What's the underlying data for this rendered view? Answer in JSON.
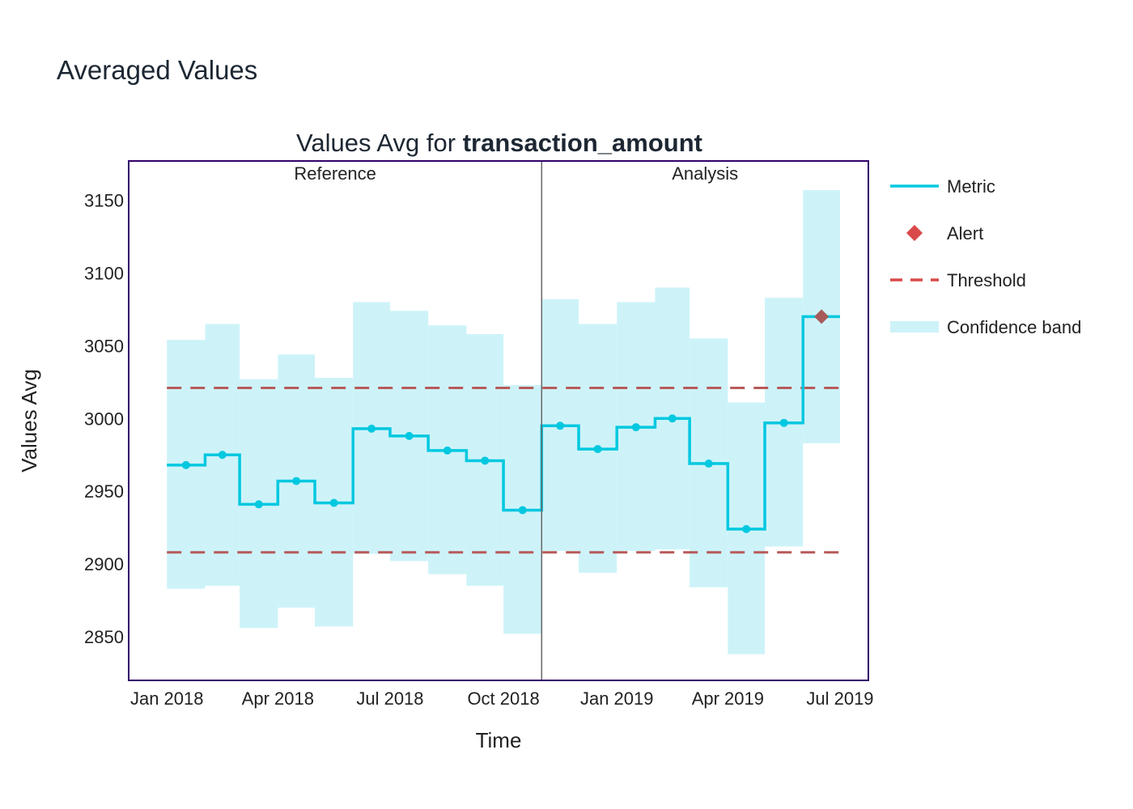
{
  "page": {
    "title": "Averaged Values"
  },
  "chart_data": {
    "type": "line",
    "title_prefix": "Values Avg for ",
    "title_bold": "transaction_amount",
    "xlabel": "Time",
    "ylabel": "Values Avg",
    "x_tick_labels": [
      "Jan 2018",
      "Apr 2018",
      "Jul 2018",
      "Oct 2018",
      "Jan 2019",
      "Apr 2019",
      "Jul 2019"
    ],
    "x_tick_dates": [
      "2018-01-01",
      "2018-04-01",
      "2018-07-01",
      "2018-10-01",
      "2019-01-01",
      "2019-04-01",
      "2019-07-01"
    ],
    "y_ticks": [
      2850,
      2900,
      2950,
      3000,
      3050,
      3100,
      3150
    ],
    "xlim": [
      "2017-12-01",
      "2019-07-24"
    ],
    "ylim": [
      2820,
      3177
    ],
    "grid": false,
    "legend_placement": "right",
    "periods": {
      "reference": "Reference",
      "analysis": "Analysis",
      "boundary": "2018-11-01"
    },
    "thresholds": {
      "upper": 3021,
      "lower": 2908
    },
    "colors": {
      "metric": "#00c8e0",
      "alert": "#d94949",
      "threshold": "#b85a5a",
      "band": "#cdf3f9",
      "frame": "#33006b",
      "divider": "#666666"
    },
    "legend": [
      {
        "label": "Metric",
        "kind": "line",
        "color": "#00c8e0"
      },
      {
        "label": "Alert",
        "kind": "diamond",
        "color": "#d94949"
      },
      {
        "label": "Threshold",
        "kind": "dash",
        "color": "#d94949"
      },
      {
        "label": "Confidence band",
        "kind": "band",
        "color": "#cdf3f9"
      }
    ],
    "series": [
      {
        "name": "Metric",
        "chunks": [
          {
            "start": "2018-01-01",
            "end": "2018-02-01",
            "value": 2968,
            "upper": 3054,
            "lower": 2883
          },
          {
            "start": "2018-02-01",
            "end": "2018-03-01",
            "value": 2975,
            "upper": 3065,
            "lower": 2885
          },
          {
            "start": "2018-03-01",
            "end": "2018-04-01",
            "value": 2941,
            "upper": 3027,
            "lower": 2856
          },
          {
            "start": "2018-04-01",
            "end": "2018-05-01",
            "value": 2957,
            "upper": 3044,
            "lower": 2870
          },
          {
            "start": "2018-05-01",
            "end": "2018-06-01",
            "value": 2942,
            "upper": 3028,
            "lower": 2857
          },
          {
            "start": "2018-06-01",
            "end": "2018-07-01",
            "value": 2993,
            "upper": 3080,
            "lower": 2907
          },
          {
            "start": "2018-07-01",
            "end": "2018-08-01",
            "value": 2988,
            "upper": 3074,
            "lower": 2902
          },
          {
            "start": "2018-08-01",
            "end": "2018-09-01",
            "value": 2978,
            "upper": 3064,
            "lower": 2893
          },
          {
            "start": "2018-09-01",
            "end": "2018-10-01",
            "value": 2971,
            "upper": 3058,
            "lower": 2885
          },
          {
            "start": "2018-10-01",
            "end": "2018-11-01",
            "value": 2937,
            "upper": 3023,
            "lower": 2852
          },
          {
            "start": "2018-11-01",
            "end": "2018-12-01",
            "value": 2995,
            "upper": 3082,
            "lower": 2909
          },
          {
            "start": "2018-12-01",
            "end": "2019-01-01",
            "value": 2979,
            "upper": 3065,
            "lower": 2894
          },
          {
            "start": "2019-01-01",
            "end": "2019-02-01",
            "value": 2994,
            "upper": 3080,
            "lower": 2909
          },
          {
            "start": "2019-02-01",
            "end": "2019-03-01",
            "value": 3000,
            "upper": 3090,
            "lower": 2910
          },
          {
            "start": "2019-03-01",
            "end": "2019-04-01",
            "value": 2969,
            "upper": 3055,
            "lower": 2884
          },
          {
            "start": "2019-04-01",
            "end": "2019-05-01",
            "value": 2924,
            "upper": 3011,
            "lower": 2838
          },
          {
            "start": "2019-05-01",
            "end": "2019-06-01",
            "value": 2997,
            "upper": 3083,
            "lower": 2912
          },
          {
            "start": "2019-06-01",
            "end": "2019-07-01",
            "value": 3070,
            "upper": 3157,
            "lower": 2983,
            "alert": true
          }
        ]
      }
    ]
  }
}
